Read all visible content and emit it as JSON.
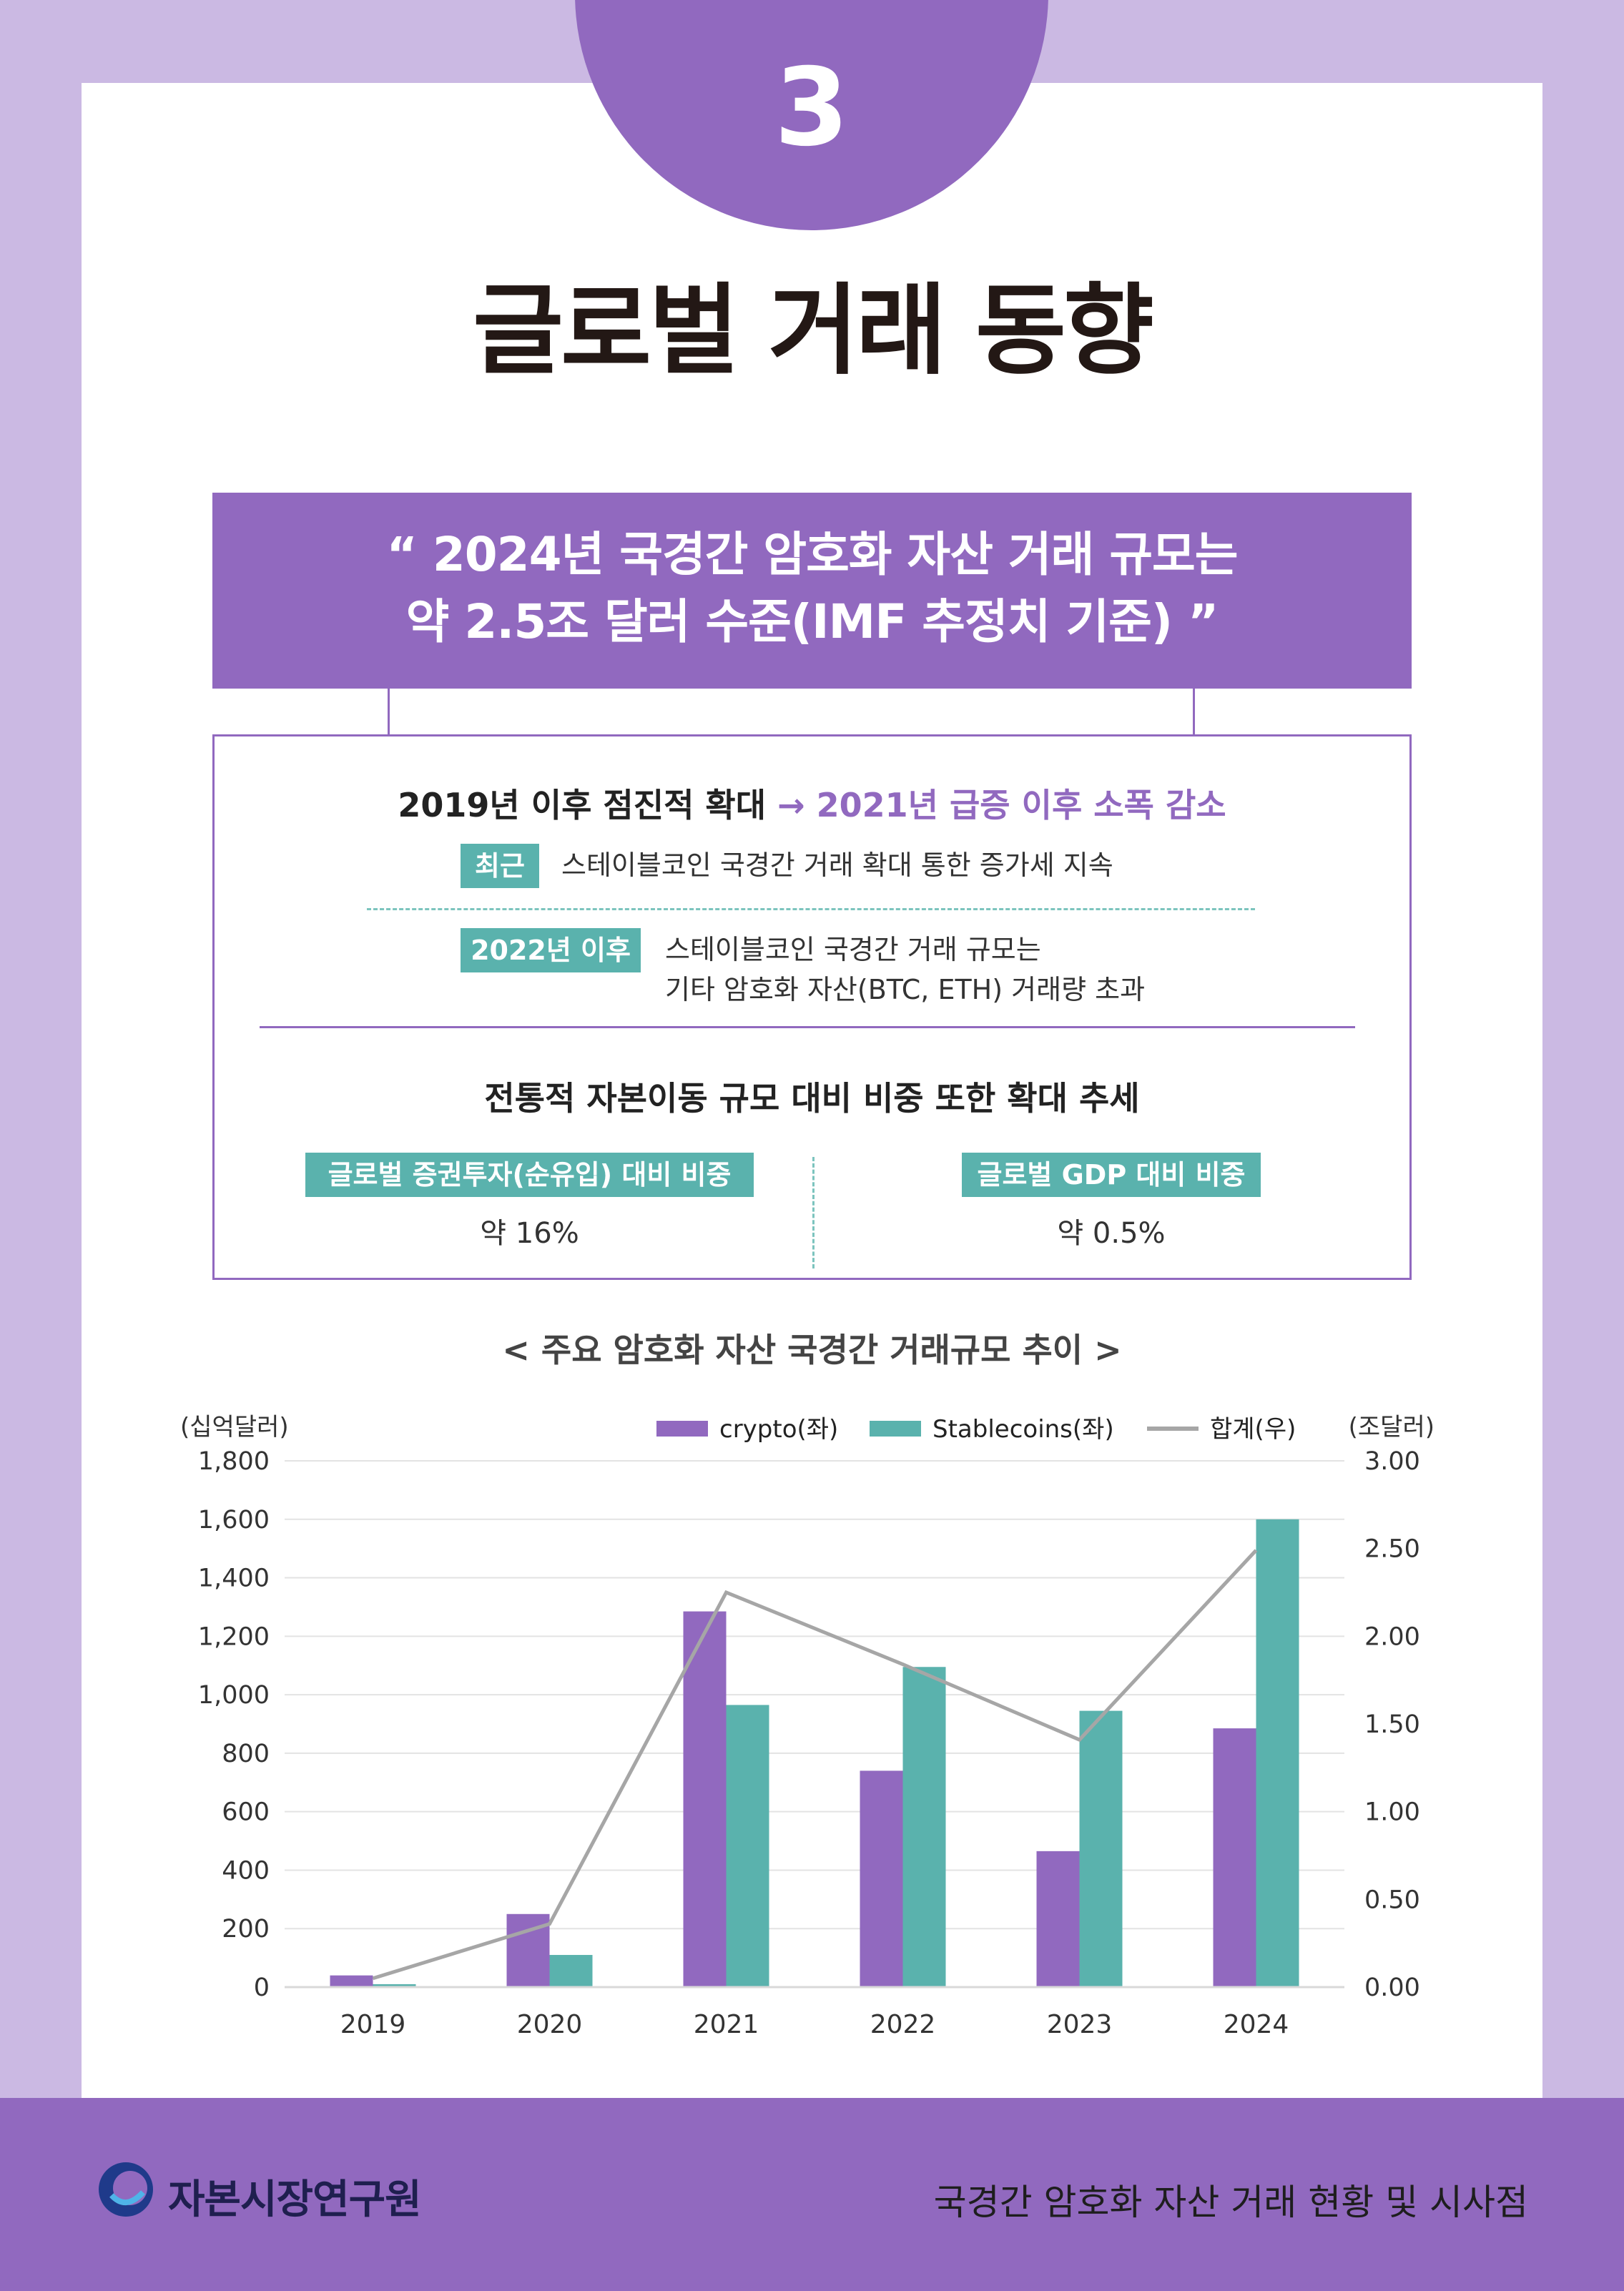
{
  "section_number": "3",
  "page_title": "글로벌 거래 동향",
  "banner": {
    "line1": "“ 2024년 국경간 암호화 자산 거래 규모는",
    "line2": "약 2.5조 달러 수준(IMF 추정치 기준) ”"
  },
  "summary": {
    "headline_plain": "2019년 이후 점진적 확대",
    "headline_highlight": "→ 2021년 급증 이후 소폭 감소",
    "recent_tag": "최근",
    "recent_text": "스테이블코인 국경간 거래 확대 통한 증가세 지속",
    "since2022_tag": "2022년 이후",
    "since2022_line1": "스테이블코인 국경간 거래 규모는",
    "since2022_line2": "기타 암호화 자산(BTC, ETH) 거래량 초과",
    "trend_headline": "전통적 자본이동 규모 대비 비중 또한 확대 추세",
    "securities_tag": "글로벌 증권투자(순유입) 대비 비중",
    "securities_value": "약 16%",
    "gdp_tag": "글로벌 GDP 대비 비중",
    "gdp_value": "약 0.5%"
  },
  "chart_title": "< 주요 암호화 자산 국경간 거래규모 추이 >",
  "chart_data": {
    "type": "bar",
    "title": "< 주요 암호화 자산 국경간 거래규모 추이 >",
    "categories": [
      "2019",
      "2020",
      "2021",
      "2022",
      "2023",
      "2024"
    ],
    "series": [
      {
        "name": "crypto(좌)",
        "type": "bar",
        "axis": "left",
        "color": "#9169bf",
        "values": [
          40,
          250,
          1285,
          740,
          465,
          885
        ]
      },
      {
        "name": "Stablecoins(좌)",
        "type": "bar",
        "axis": "left",
        "color": "#5ab2ad",
        "values": [
          10,
          110,
          965,
          1095,
          945,
          1600
        ]
      },
      {
        "name": "합계(우)",
        "type": "line",
        "axis": "right",
        "color": "#a6a6a6",
        "values": [
          0.05,
          0.36,
          2.25,
          1.84,
          1.41,
          2.49
        ]
      }
    ],
    "ylabel_left": "(십억달러)",
    "ylabel_right": "(조달러)",
    "ylim_left": [
      0,
      1800
    ],
    "ylim_right": [
      0,
      3
    ],
    "yticks_left": [
      "0",
      "200",
      "400",
      "600",
      "800",
      "1,000",
      "1,200",
      "1,400",
      "1,600",
      "1,800"
    ],
    "yticks_right": [
      "0.00",
      "0.50",
      "1.00",
      "1.50",
      "2.00",
      "2.50",
      "3.00"
    ],
    "legend_position": "top-right",
    "grid": true
  },
  "footer": {
    "org_name": "자본시장연구원",
    "report_title": "국경간 암호화 자산 거래 현황 및 시사점"
  }
}
